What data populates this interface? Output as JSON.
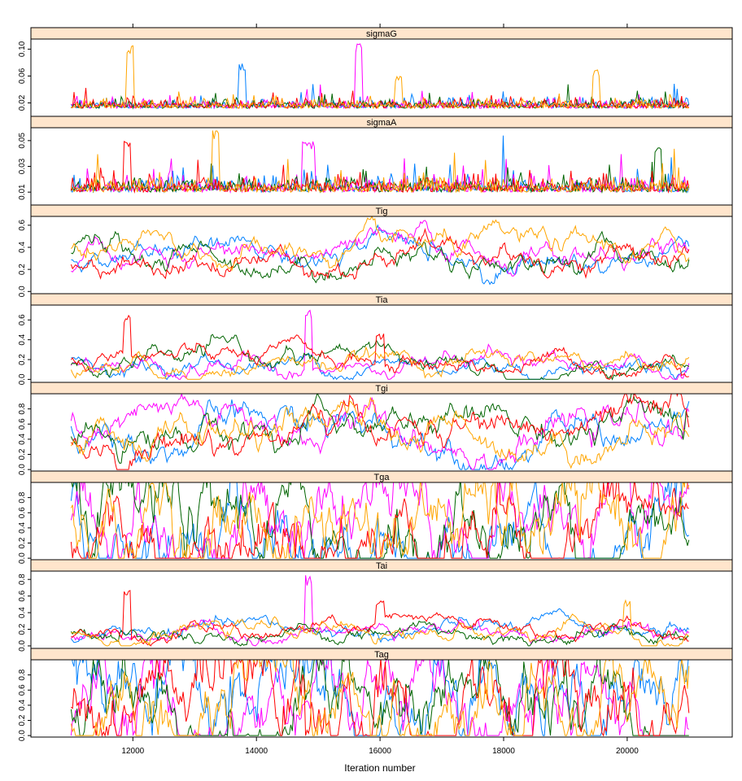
{
  "chart_data": {
    "type": "line",
    "xlabel": "Iteration number",
    "xlim": [
      10350,
      21700
    ],
    "x_ticks": [
      12000,
      14000,
      16000,
      18000,
      20000
    ],
    "x_tick_labels": [
      "12000",
      "14000",
      "16000",
      "18000",
      "20000"
    ],
    "x_range": [
      11000,
      21000
    ],
    "chains": 5,
    "series_colors": [
      "#0080ff",
      "#ff00ff",
      "#006400",
      "#ff0000",
      "#ffa500"
    ],
    "strip_color": "#ffe5cc",
    "panels": [
      {
        "name": "sigmaG",
        "ylim": [
          0,
          0.115
        ],
        "y_ticks": [
          0.02,
          0.06,
          0.1
        ],
        "y_tick_labels": [
          "0.02",
          "0.06",
          "0.10"
        ],
        "trace": {
          "style": "positive",
          "base": 0.012,
          "spread": 0.006,
          "min": 0.008,
          "max": 0.04
        },
        "spikes": [
          {
            "iter": 11950,
            "value": 0.11,
            "chain": 4
          },
          {
            "iter": 13780,
            "value": 0.08,
            "chain": 0
          },
          {
            "iter": 15660,
            "value": 0.11,
            "chain": 1
          },
          {
            "iter": 16300,
            "value": 0.06,
            "chain": 4
          },
          {
            "iter": 19500,
            "value": 0.07,
            "chain": 4
          }
        ]
      },
      {
        "name": "sigmaA",
        "ylim": [
          0,
          0.06
        ],
        "y_ticks": [
          0.01,
          0.03,
          0.05
        ],
        "y_tick_labels": [
          "0.01",
          "0.03",
          "0.05"
        ],
        "trace": {
          "style": "positive",
          "base": 0.01,
          "spread": 0.005,
          "min": 0.004,
          "max": 0.035
        },
        "spikes": [
          {
            "iter": 11900,
            "value": 0.05,
            "chain": 3
          },
          {
            "iter": 13350,
            "value": 0.06,
            "chain": 4
          },
          {
            "iter": 14800,
            "value": 0.05,
            "chain": 1
          },
          {
            "iter": 14900,
            "value": 0.05,
            "chain": 1
          },
          {
            "iter": 20500,
            "value": 0.045,
            "chain": 2
          }
        ]
      },
      {
        "name": "Tig",
        "ylim": [
          -0.02,
          0.68
        ],
        "y_ticks": [
          0.0,
          0.2,
          0.4,
          0.6
        ],
        "y_tick_labels": [
          "0.0",
          "0.2",
          "0.4",
          "0.6"
        ],
        "trace": {
          "style": "walk",
          "base": 0.32,
          "spread": 0.13,
          "min": 0.0,
          "max": 0.65,
          "step": 0.03
        },
        "spikes": []
      },
      {
        "name": "Tia",
        "ylim": [
          -0.03,
          0.75
        ],
        "y_ticks": [
          0.0,
          0.2,
          0.4,
          0.6
        ],
        "y_tick_labels": [
          "0.0",
          "0.2",
          "0.4",
          "0.6"
        ],
        "trace": {
          "style": "walk",
          "base": 0.17,
          "spread": 0.05,
          "min": 0.0,
          "max": 0.45,
          "step": 0.025
        },
        "spikes": [
          {
            "iter": 11900,
            "value": 0.65,
            "chain": 3
          },
          {
            "iter": 14850,
            "value": 0.7,
            "chain": 1
          },
          {
            "iter": 16000,
            "value": 0.47,
            "chain": 3
          }
        ]
      },
      {
        "name": "Tgi",
        "ylim": [
          -0.02,
          1.0
        ],
        "y_ticks": [
          0.0,
          0.2,
          0.4,
          0.6,
          0.8
        ],
        "y_tick_labels": [
          "0.0",
          "0.2",
          "0.4",
          "0.6",
          "0.8"
        ],
        "trace": {
          "style": "walk",
          "base": 0.5,
          "spread": 0.22,
          "min": 0.0,
          "max": 1.0,
          "step": 0.06
        },
        "spikes": []
      },
      {
        "name": "Tga",
        "ylim": [
          -0.02,
          1.0
        ],
        "y_ticks": [
          0.0,
          0.2,
          0.4,
          0.6,
          0.8
        ],
        "y_tick_labels": [
          "0.0",
          "0.2",
          "0.4",
          "0.6",
          "0.8"
        ],
        "trace": {
          "style": "walk",
          "base": 0.5,
          "spread": 0.3,
          "min": 0.0,
          "max": 1.0,
          "step": 0.16
        },
        "spikes": []
      },
      {
        "name": "Tai",
        "ylim": [
          -0.03,
          0.9
        ],
        "y_ticks": [
          0.0,
          0.2,
          0.4,
          0.6,
          0.8
        ],
        "y_tick_labels": [
          "0.0",
          "0.2",
          "0.4",
          "0.6",
          "0.8"
        ],
        "trace": {
          "style": "walk",
          "base": 0.17,
          "spread": 0.06,
          "min": 0.0,
          "max": 0.5,
          "step": 0.025
        },
        "spikes": [
          {
            "iter": 11900,
            "value": 0.7,
            "chain": 3
          },
          {
            "iter": 14850,
            "value": 0.85,
            "chain": 1
          },
          {
            "iter": 16000,
            "value": 0.55,
            "chain": 3
          },
          {
            "iter": 20000,
            "value": 0.55,
            "chain": 4
          }
        ]
      },
      {
        "name": "Tag",
        "ylim": [
          -0.02,
          1.0
        ],
        "y_ticks": [
          0.0,
          0.2,
          0.4,
          0.6,
          0.8
        ],
        "y_tick_labels": [
          "0.0",
          "0.2",
          "0.4",
          "0.6",
          "0.8"
        ],
        "trace": {
          "style": "walk",
          "base": 0.5,
          "spread": 0.3,
          "min": 0.0,
          "max": 1.0,
          "step": 0.16
        },
        "spikes": []
      }
    ]
  }
}
